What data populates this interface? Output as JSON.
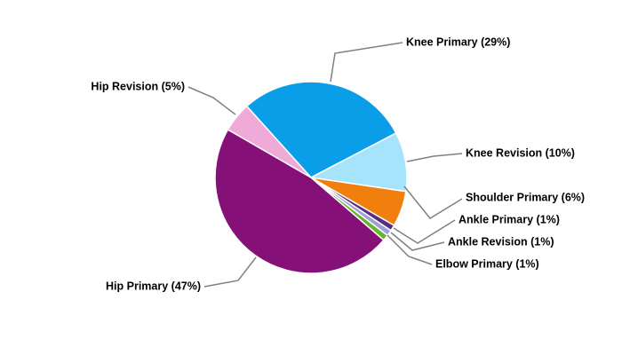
{
  "chart_data": {
    "type": "pie",
    "values": [
      29,
      10,
      6,
      1,
      1,
      1,
      47,
      5
    ],
    "value_labels": [
      "Knee Primary (29%)",
      "Knee Revision (10%)",
      "Shoulder Primary (6%)",
      "Ankle Primary (1%)",
      "Ankle Revision (1%)",
      "Elbow Primary (1%)",
      "Hip Primary (47%)",
      "Hip Revision (5%)"
    ],
    "colors": [
      "#0a9ee8",
      "#a6e4fb",
      "#f07f0d",
      "#5b2d82",
      "#9ea0d8",
      "#6ab42d",
      "#851078",
      "#f0aad8"
    ]
  }
}
